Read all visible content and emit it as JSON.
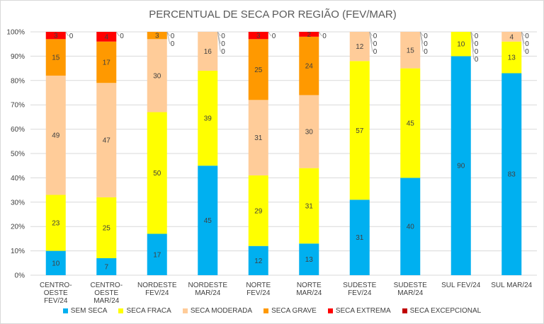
{
  "chart_data": {
    "type": "bar",
    "stacked": true,
    "title": "PERCENTUAL DE SECA POR REGIÃO (FEV/MAR)",
    "xlabel": "",
    "ylabel": "",
    "ylim": [
      0,
      100
    ],
    "y_ticks": [
      "0%",
      "10%",
      "20%",
      "30%",
      "40%",
      "50%",
      "60%",
      "70%",
      "80%",
      "90%",
      "100%"
    ],
    "grid": true,
    "legend": "bottom",
    "categories": [
      [
        "CENTRO-OESTE",
        "FEV/24"
      ],
      [
        "CENTRO-OESTE",
        "MAR/24"
      ],
      [
        "NORDESTE",
        "FEV/24"
      ],
      [
        "NORDESTE",
        "MAR/24"
      ],
      [
        "NORTE FEV/24"
      ],
      [
        "NORTE MAR/24"
      ],
      [
        "SUDESTE",
        "FEV/24"
      ],
      [
        "SUDESTE",
        "MAR/24"
      ],
      [
        "SUL FEV/24"
      ],
      [
        "SUL MAR/24"
      ]
    ],
    "series": [
      {
        "name": "SEM SECA",
        "color": "#00B0F0",
        "values": [
          10,
          7,
          17,
          45,
          12,
          13,
          31,
          40,
          90,
          83
        ]
      },
      {
        "name": "SECA FRACA",
        "color": "#FFFF00",
        "values": [
          23,
          25,
          50,
          39,
          29,
          31,
          57,
          45,
          10,
          13
        ]
      },
      {
        "name": "SECA MODERADA",
        "color": "#FFCC99",
        "values": [
          49,
          47,
          30,
          16,
          31,
          30,
          12,
          15,
          0,
          4
        ]
      },
      {
        "name": "SECA GRAVE",
        "color": "#FF9900",
        "values": [
          15,
          17,
          3,
          0,
          25,
          24,
          0,
          0,
          0,
          0
        ]
      },
      {
        "name": "SECA EXTREMA",
        "color": "#FF0000",
        "values": [
          3,
          4,
          0,
          0,
          3,
          2,
          0,
          0,
          0,
          0
        ]
      },
      {
        "name": "SECA EXCEPCIONAL",
        "color": "#C00000",
        "values": [
          0,
          0,
          0,
          0,
          0,
          0,
          0,
          0,
          0,
          0
        ]
      }
    ]
  }
}
